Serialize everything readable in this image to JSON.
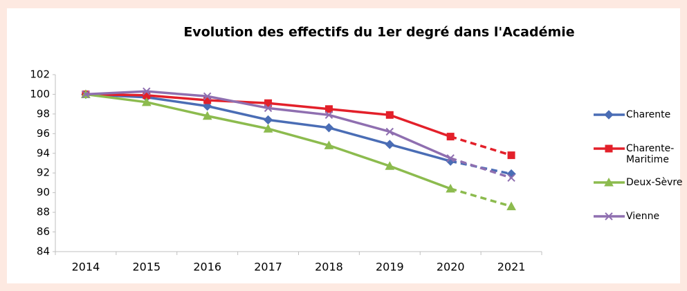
{
  "chart_data": {
    "type": "line",
    "title": "Evolution des effectifs du 1er degré dans l'Académie",
    "categories": [
      "2014",
      "2015",
      "2016",
      "2017",
      "2018",
      "2019",
      "2020",
      "2021"
    ],
    "series": [
      {
        "name": "Charente",
        "color": "#4a6db5",
        "marker": "diamond",
        "dashed_last_segment": true,
        "values": [
          100,
          99.7,
          98.8,
          97.4,
          96.6,
          94.9,
          93.2,
          91.9
        ]
      },
      {
        "name": "Charente-Maritime",
        "color": "#e3202a",
        "marker": "square",
        "dashed_last_segment": true,
        "values": [
          100,
          99.9,
          99.4,
          99.1,
          98.5,
          97.9,
          95.7,
          93.8
        ]
      },
      {
        "name": "Deux-Sèvre",
        "color": "#8cbb4e",
        "marker": "triangle",
        "dashed_last_segment": true,
        "values": [
          100,
          99.2,
          97.8,
          96.5,
          94.8,
          92.7,
          90.4,
          88.6
        ]
      },
      {
        "name": "Vienne",
        "color": "#8f6fb0",
        "marker": "cross",
        "dashed_last_segment": true,
        "values": [
          100,
          100.3,
          99.8,
          98.6,
          97.9,
          96.2,
          93.5,
          91.5
        ]
      }
    ],
    "ylim": [
      84,
      102
    ],
    "yticks": [
      84,
      86,
      88,
      90,
      92,
      94,
      96,
      98,
      100,
      102
    ],
    "grid": false,
    "legend": "right"
  }
}
